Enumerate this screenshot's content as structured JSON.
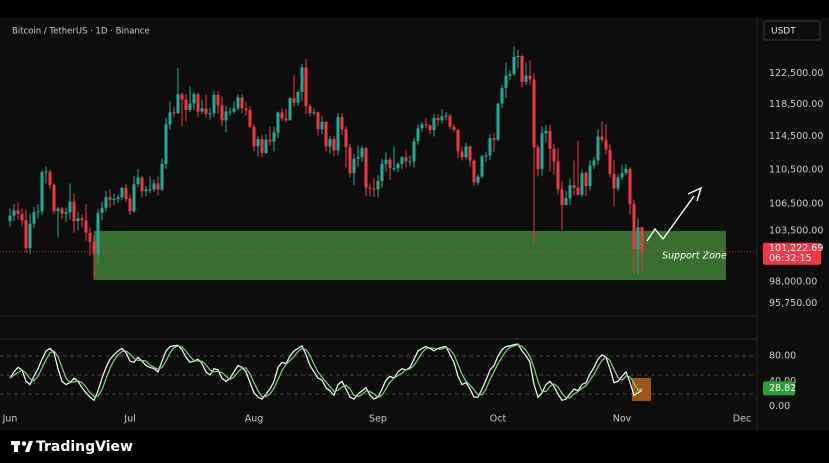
{
  "brand": "TradingView",
  "chart_data": [
    {
      "type": "candlestick",
      "title": "Bitcoin / TetherUS · 1D · Binance",
      "currency": "USDT",
      "log_scale": true,
      "grid": false,
      "up_color": "#22ab94",
      "down_color": "#f23645",
      "ylim": [
        94600,
        129700
      ],
      "yticks": [
        {
          "value": 122500,
          "label": "122,500.00"
        },
        {
          "value": 118500,
          "label": "118,500.00"
        },
        {
          "value": 114500,
          "label": "114,500.00"
        },
        {
          "value": 110500,
          "label": "110,500.00"
        },
        {
          "value": 106500,
          "label": "106,500.00"
        },
        {
          "value": 103500,
          "label": "103,500.00"
        },
        {
          "value": 98000,
          "label": "98,000.00"
        },
        {
          "value": 95750,
          "label": "95,750.00"
        }
      ],
      "xlim": [
        -2.5,
        186.25
      ],
      "xticks": [
        {
          "value": 0,
          "label": "Jun"
        },
        {
          "value": 30,
          "label": "Jul"
        },
        {
          "value": 61,
          "label": "Aug"
        },
        {
          "value": 92,
          "label": "Sep"
        },
        {
          "value": 122,
          "label": "Oct"
        },
        {
          "value": 153,
          "label": "Nov"
        },
        {
          "value": 183,
          "label": "Dec"
        }
      ],
      "open": [
        104600,
        105200,
        105800,
        105400,
        104700,
        101600,
        104300,
        105600,
        105700,
        110200,
        110300,
        108700,
        105700,
        106000,
        105400,
        105600,
        106800,
        104600,
        104900,
        104700,
        103300,
        102300,
        101000,
        105500,
        106100,
        107300,
        107000,
        107100,
        107300,
        108400,
        107100,
        105700,
        108800,
        109600,
        108000,
        108200,
        108200,
        108900,
        108200,
        111200,
        116000,
        117500,
        117400,
        119800,
        119100,
        117800,
        118600,
        119800,
        117600,
        118000,
        117300,
        117400,
        119700,
        118400,
        116500,
        117600,
        117600,
        118000,
        119400,
        118000,
        117800,
        115700,
        113300,
        114200,
        112500,
        114100,
        113900,
        115000,
        117500,
        116700,
        116500,
        119300,
        118700,
        120100,
        123300,
        118300,
        117400,
        117500,
        115400,
        116300,
        113300,
        114200,
        112800,
        116900,
        115400,
        113200,
        110100,
        111800,
        112000,
        113100,
        108400,
        108300,
        108200,
        109200,
        111200,
        111700,
        110700,
        110700,
        111200,
        112000,
        111500,
        111500,
        113900,
        115500,
        116000,
        115900,
        115300,
        116800,
        116500,
        117000,
        117100,
        115700,
        115300,
        112700,
        112000,
        113300,
        111600,
        109000,
        109700,
        112100,
        112200,
        114300,
        114100,
        118600,
        120600,
        122200,
        122400,
        124700,
        124800,
        121400,
        122200,
        121700,
        113200,
        110600,
        114900,
        115200,
        113000,
        111500,
        108200,
        106400,
        107200,
        108700,
        108400,
        107600,
        110100,
        108600,
        111000,
        111600,
        114500,
        114100,
        112900,
        110000,
        108300,
        109600,
        110100,
        110600,
        106500,
        101500,
        103900
      ],
      "high": [
        106000,
        106500,
        106700,
        106000,
        105900,
        105400,
        106200,
        106500,
        110500,
        110900,
        110500,
        108900,
        106200,
        106200,
        106100,
        108900,
        107700,
        105600,
        105300,
        106500,
        103900,
        103100,
        106000,
        106800,
        108000,
        108200,
        107700,
        107600,
        108500,
        108800,
        107600,
        109800,
        110600,
        109800,
        108600,
        109700,
        109400,
        109700,
        111900,
        116800,
        118900,
        118200,
        123200,
        120000,
        119800,
        120800,
        120100,
        120000,
        119100,
        119700,
        118000,
        120200,
        120200,
        119500,
        118300,
        118100,
        118900,
        119800,
        119800,
        118800,
        118200,
        116000,
        114500,
        114700,
        114800,
        115700,
        115700,
        117600,
        118000,
        117900,
        119400,
        122300,
        120300,
        123700,
        124400,
        118600,
        118000,
        117600,
        117000,
        116400,
        114600,
        114600,
        117400,
        117400,
        115800,
        113600,
        112400,
        113400,
        113400,
        113200,
        108900,
        109500,
        109900,
        111800,
        112600,
        112000,
        113300,
        111400,
        112100,
        112900,
        112200,
        114300,
        116000,
        116300,
        116800,
        116000,
        117300,
        117300,
        117900,
        117500,
        117300,
        116000,
        115400,
        113300,
        113700,
        113400,
        111800,
        110000,
        112300,
        112600,
        114800,
        114900,
        118700,
        121000,
        123900,
        122900,
        126100,
        125600,
        125100,
        123900,
        124200,
        122500,
        113500,
        115800,
        115900,
        116000,
        113600,
        113100,
        109200,
        108000,
        109500,
        111600,
        114000,
        110500,
        110300,
        111600,
        112000,
        115400,
        116400,
        116000,
        113600,
        111700,
        109900,
        111100,
        111200,
        110800,
        107000,
        104900,
        104000
      ],
      "low": [
        104000,
        104600,
        104800,
        104000,
        101100,
        101000,
        103800,
        104900,
        105300,
        108900,
        108200,
        105400,
        102800,
        104800,
        104500,
        104800,
        103300,
        103600,
        103900,
        102400,
        100800,
        98300,
        100000,
        104700,
        105700,
        106100,
        106400,
        106700,
        107000,
        106800,
        105300,
        105500,
        108500,
        107300,
        107400,
        107800,
        107900,
        107500,
        108000,
        110600,
        115300,
        116900,
        117300,
        115800,
        116400,
        117500,
        117800,
        116900,
        117300,
        116800,
        116600,
        116900,
        117300,
        115800,
        115000,
        117100,
        117300,
        117800,
        117400,
        117100,
        115600,
        112700,
        112100,
        112000,
        112400,
        113400,
        112700,
        114300,
        116400,
        116300,
        116500,
        118200,
        118300,
        118900,
        117300,
        117000,
        117100,
        114600,
        114800,
        112700,
        112400,
        112100,
        112200,
        114700,
        110800,
        109600,
        108700,
        110900,
        111400,
        107400,
        107400,
        107300,
        107300,
        108400,
        110300,
        109300,
        110300,
        110200,
        110600,
        110800,
        110900,
        110800,
        113500,
        115100,
        115500,
        114800,
        114500,
        115800,
        116100,
        116500,
        115400,
        115000,
        111900,
        111600,
        111700,
        110900,
        108600,
        108700,
        109500,
        111400,
        111700,
        112600,
        113900,
        118000,
        119300,
        121600,
        122200,
        123200,
        120700,
        121000,
        121000,
        102000,
        109700,
        109800,
        113800,
        110300,
        109900,
        107600,
        103600,
        106400,
        106400,
        107500,
        107500,
        107300,
        107400,
        108100,
        110600,
        111100,
        113800,
        112300,
        109600,
        106300,
        108000,
        109300,
        109900,
        105400,
        98900,
        98800,
        99200
      ],
      "close": [
        105200,
        105800,
        105400,
        104700,
        101600,
        104300,
        105600,
        105700,
        110200,
        110300,
        108700,
        105700,
        106000,
        105400,
        105600,
        106800,
        104600,
        104900,
        104700,
        103300,
        102300,
        101000,
        105500,
        106100,
        107300,
        107000,
        107100,
        107300,
        108400,
        107100,
        105700,
        108800,
        109600,
        108000,
        108200,
        108200,
        108900,
        108200,
        111200,
        116000,
        117500,
        117400,
        119800,
        119100,
        117800,
        118600,
        119800,
        117600,
        118000,
        117300,
        117400,
        119700,
        118400,
        116500,
        117600,
        117600,
        118000,
        119400,
        118000,
        117800,
        115700,
        113300,
        114200,
        112500,
        114100,
        113900,
        115000,
        117500,
        116700,
        116500,
        119300,
        118700,
        120100,
        123300,
        118300,
        117400,
        117500,
        115400,
        116300,
        113300,
        114200,
        112800,
        116900,
        115400,
        113200,
        110100,
        111800,
        112000,
        113100,
        108400,
        108300,
        108200,
        109200,
        111200,
        111700,
        110700,
        110700,
        111200,
        112000,
        111500,
        111500,
        113900,
        115500,
        116000,
        115900,
        115300,
        116800,
        116500,
        117000,
        117100,
        115700,
        115300,
        112700,
        112000,
        113300,
        111600,
        109000,
        109700,
        112100,
        112200,
        114300,
        114100,
        118600,
        120600,
        122200,
        122400,
        124700,
        124800,
        121400,
        122200,
        121700,
        113200,
        110600,
        114900,
        115200,
        113000,
        111500,
        108200,
        106400,
        107200,
        108700,
        108400,
        107600,
        110100,
        108600,
        111000,
        111600,
        114500,
        114100,
        112900,
        110000,
        108300,
        109600,
        110100,
        110600,
        106500,
        101500,
        103900,
        101222.69
      ],
      "zone": {
        "label": "Support Zone",
        "low": 98200,
        "high": 103500,
        "start": 21,
        "end": 179,
        "color": "#3d7a34"
      },
      "last_price": {
        "value": 101222.69,
        "label": "101,222.69",
        "countdown": "06:32:15"
      }
    },
    {
      "type": "line",
      "ylim": [
        -8.4,
        105.3
      ],
      "yticks": [
        {
          "value": 80,
          "label": "80.00"
        },
        {
          "value": 40,
          "label": "40.00"
        },
        {
          "value": 0,
          "label": "0.00"
        }
      ],
      "levels": [
        80,
        50,
        20
      ],
      "series": [
        {
          "color": "#ffffff",
          "values": [
            45,
            55,
            62,
            58,
            40,
            35,
            48,
            60,
            75,
            88,
            92,
            85,
            60,
            40,
            35,
            38,
            45,
            40,
            30,
            22,
            15,
            10,
            25,
            45,
            62,
            75,
            82,
            88,
            92,
            85,
            72,
            70,
            78,
            72,
            65,
            62,
            60,
            55,
            72,
            88,
            95,
            96,
            97,
            90,
            78,
            70,
            72,
            75,
            68,
            55,
            50,
            60,
            58,
            45,
            40,
            45,
            55,
            65,
            62,
            55,
            38,
            22,
            15,
            12,
            20,
            28,
            40,
            62,
            70,
            68,
            80,
            88,
            92,
            96,
            82,
            65,
            55,
            45,
            42,
            30,
            25,
            18,
            35,
            40,
            28,
            15,
            12,
            20,
            25,
            30,
            18,
            12,
            15,
            28,
            42,
            48,
            45,
            55,
            60,
            58,
            62,
            75,
            88,
            92,
            95,
            92,
            88,
            92,
            94,
            95,
            82,
            70,
            48,
            35,
            38,
            28,
            15,
            15,
            28,
            42,
            58,
            65,
            80,
            90,
            95,
            96,
            98,
            99,
            88,
            80,
            70,
            35,
            15,
            22,
            35,
            40,
            32,
            20,
            10,
            12,
            20,
            28,
            25,
            35,
            38,
            52,
            62,
            75,
            82,
            78,
            60,
            38,
            40,
            48,
            55,
            38,
            18,
            22,
            26
          ]
        },
        {
          "color": "#7fd47a",
          "values": [
            45,
            50,
            54,
            58,
            53,
            44,
            41,
            48,
            61,
            74,
            85,
            88,
            79,
            62,
            45,
            38,
            39,
            41,
            38,
            31,
            22,
            16,
            17,
            27,
            44,
            61,
            73,
            82,
            87,
            88,
            83,
            76,
            73,
            73,
            72,
            66,
            62,
            59,
            62,
            72,
            85,
            93,
            96,
            94,
            88,
            79,
            73,
            72,
            72,
            66,
            58,
            55,
            56,
            54,
            48,
            43,
            47,
            55,
            61,
            61,
            52,
            38,
            25,
            16,
            16,
            20,
            29,
            43,
            57,
            67,
            73,
            79,
            87,
            92,
            90,
            81,
            67,
            55,
            47,
            39,
            32,
            24,
            26,
            31,
            34,
            28,
            18,
            16,
            19,
            25,
            24,
            20,
            15,
            18,
            28,
            39,
            45,
            49,
            53,
            58,
            60,
            65,
            75,
            85,
            92,
            93,
            92,
            91,
            91,
            94,
            90,
            82,
            67,
            51,
            40,
            34,
            27,
            19,
            19,
            28,
            43,
            55,
            68,
            78,
            88,
            94,
            96,
            98,
            95,
            89,
            79,
            62,
            40,
            24,
            24,
            32,
            36,
            31,
            21,
            14,
            14,
            20,
            24,
            29,
            33,
            42,
            51,
            63,
            73,
            78,
            73,
            59,
            46,
            42,
            48,
            47,
            37,
            26,
            28.82
          ]
        }
      ]
    }
  ]
}
